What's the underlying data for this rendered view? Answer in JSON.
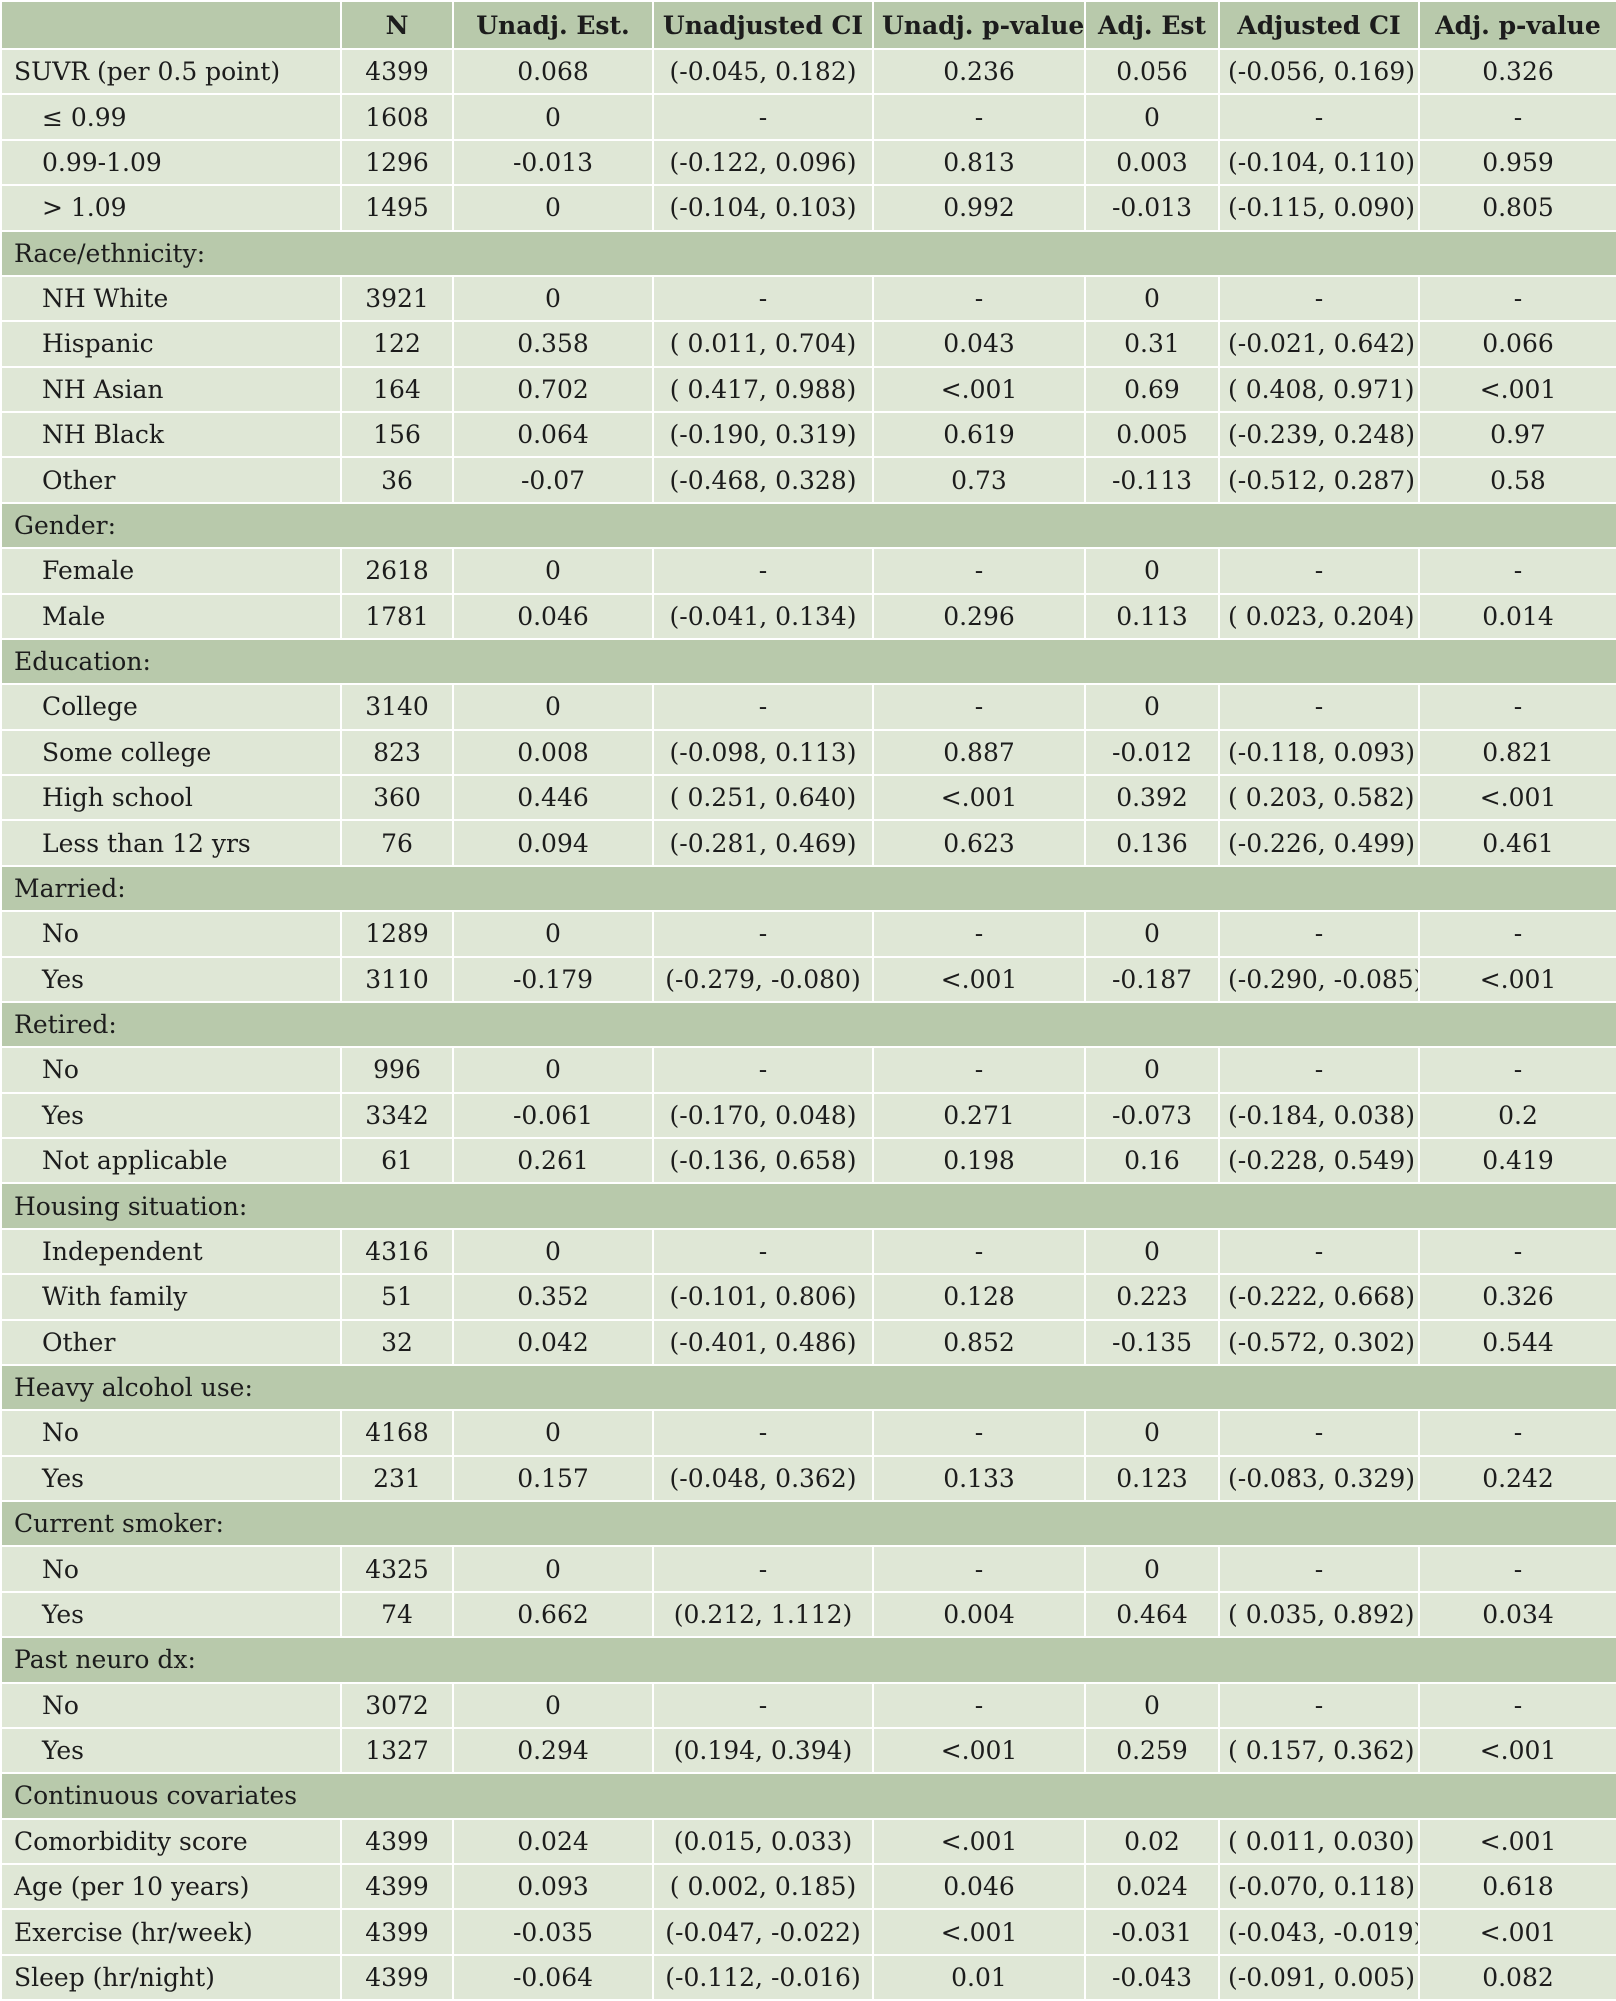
{
  "header": [
    "",
    "N",
    "Unadj. Est.",
    "Unadjusted CI",
    "Unadj. p-value",
    "Adj. Est",
    "Adjusted CI",
    "Adj. p-value"
  ],
  "rows": [
    {
      "kind": "data",
      "indent": false,
      "cells": [
        "SUVR (per 0.5 point)",
        "4399",
        "0.068",
        "(-0.045, 0.182)",
        "0.236",
        "0.056",
        "(-0.056,  0.169)",
        "0.326"
      ]
    },
    {
      "kind": "data",
      "indent": true,
      "cells": [
        "≤ 0.99",
        "1608",
        "0",
        "-",
        "-",
        "0",
        "-",
        "-"
      ]
    },
    {
      "kind": "data",
      "indent": true,
      "cells": [
        "0.99-1.09",
        "1296",
        "-0.013",
        "(-0.122, 0.096)",
        "0.813",
        "0.003",
        "(-0.104,  0.110)",
        "0.959"
      ]
    },
    {
      "kind": "data",
      "indent": true,
      "cells": [
        "> 1.09",
        "1495",
        "0",
        "(-0.104, 0.103)",
        "0.992",
        "-0.013",
        "(-0.115,  0.090)",
        "0.805"
      ]
    },
    {
      "kind": "section",
      "label": "Race/ethnicity:"
    },
    {
      "kind": "data",
      "indent": true,
      "cells": [
        "NH White",
        "3921",
        "0",
        "-",
        "-",
        "0",
        "-",
        "-"
      ]
    },
    {
      "kind": "data",
      "indent": true,
      "cells": [
        "Hispanic",
        "122",
        "0.358",
        "( 0.011, 0.704)",
        "0.043",
        "0.31",
        "(-0.021,  0.642)",
        "0.066"
      ]
    },
    {
      "kind": "data",
      "indent": true,
      "cells": [
        "NH Asian",
        "164",
        "0.702",
        "( 0.417, 0.988)",
        "<.001",
        "0.69",
        "( 0.408,  0.971)",
        "<.001"
      ]
    },
    {
      "kind": "data",
      "indent": true,
      "cells": [
        "NH Black",
        "156",
        "0.064",
        "(-0.190, 0.319)",
        "0.619",
        "0.005",
        "(-0.239,  0.248)",
        "0.97"
      ]
    },
    {
      "kind": "data",
      "indent": true,
      "cells": [
        "Other",
        "36",
        "-0.07",
        "(-0.468, 0.328)",
        "0.73",
        "-0.113",
        "(-0.512,  0.287)",
        "0.58"
      ]
    },
    {
      "kind": "section",
      "label": "Gender:"
    },
    {
      "kind": "data",
      "indent": true,
      "cells": [
        "Female",
        "2618",
        "0",
        "-",
        "-",
        "0",
        "-",
        "-"
      ]
    },
    {
      "kind": "data",
      "indent": true,
      "cells": [
        "Male",
        "1781",
        "0.046",
        "(-0.041, 0.134)",
        "0.296",
        "0.113",
        "( 0.023,  0.204)",
        "0.014"
      ]
    },
    {
      "kind": "section",
      "label": "Education:"
    },
    {
      "kind": "data",
      "indent": true,
      "cells": [
        "College",
        "3140",
        "0",
        "-",
        "-",
        "0",
        "-",
        "-"
      ]
    },
    {
      "kind": "data",
      "indent": true,
      "cells": [
        "Some college",
        "823",
        "0.008",
        "(-0.098, 0.113)",
        "0.887",
        "-0.012",
        "(-0.118,  0.093)",
        "0.821"
      ]
    },
    {
      "kind": "data",
      "indent": true,
      "cells": [
        "High school",
        "360",
        "0.446",
        "( 0.251, 0.640)",
        "<.001",
        "0.392",
        "( 0.203,  0.582)",
        "<.001"
      ]
    },
    {
      "kind": "data",
      "indent": true,
      "cells": [
        "Less than 12 yrs",
        "76",
        "0.094",
        "(-0.281, 0.469)",
        "0.623",
        "0.136",
        "(-0.226,  0.499)",
        "0.461"
      ]
    },
    {
      "kind": "section",
      "label": "Married:"
    },
    {
      "kind": "data",
      "indent": true,
      "cells": [
        "No",
        "1289",
        "0",
        "-",
        "-",
        "0",
        "-",
        "-"
      ]
    },
    {
      "kind": "data",
      "indent": true,
      "cells": [
        "Yes",
        "3110",
        "-0.179",
        "(-0.279, -0.080)",
        "<.001",
        "-0.187",
        "(-0.290, -0.085)",
        "<.001"
      ]
    },
    {
      "kind": "section",
      "label": "Retired:"
    },
    {
      "kind": "data",
      "indent": true,
      "cells": [
        "No",
        "996",
        "0",
        "-",
        "-",
        "0",
        "-",
        "-"
      ]
    },
    {
      "kind": "data",
      "indent": true,
      "cells": [
        "Yes",
        "3342",
        "-0.061",
        "(-0.170, 0.048)",
        "0.271",
        "-0.073",
        "(-0.184,  0.038)",
        "0.2"
      ]
    },
    {
      "kind": "data",
      "indent": true,
      "cells": [
        "Not applicable",
        "61",
        "0.261",
        "(-0.136, 0.658)",
        "0.198",
        "0.16",
        "(-0.228,  0.549)",
        "0.419"
      ]
    },
    {
      "kind": "section",
      "label": "Housing situation:"
    },
    {
      "kind": "data",
      "indent": true,
      "cells": [
        "Independent",
        "4316",
        "0",
        "-",
        "-",
        "0",
        "-",
        "-"
      ]
    },
    {
      "kind": "data",
      "indent": true,
      "cells": [
        "With family",
        "51",
        "0.352",
        "(-0.101, 0.806)",
        "0.128",
        "0.223",
        "(-0.222,  0.668)",
        "0.326"
      ]
    },
    {
      "kind": "data",
      "indent": true,
      "cells": [
        "Other",
        "32",
        "0.042",
        "(-0.401, 0.486)",
        "0.852",
        "-0.135",
        "(-0.572,  0.302)",
        "0.544"
      ]
    },
    {
      "kind": "section",
      "label": "Heavy alcohol use:"
    },
    {
      "kind": "data",
      "indent": true,
      "cells": [
        "No",
        "4168",
        "0",
        "-",
        "-",
        "0",
        "-",
        "-"
      ]
    },
    {
      "kind": "data",
      "indent": true,
      "cells": [
        "Yes",
        "231",
        "0.157",
        "(-0.048, 0.362)",
        "0.133",
        "0.123",
        "(-0.083,  0.329)",
        "0.242"
      ]
    },
    {
      "kind": "section",
      "label": "Current smoker:"
    },
    {
      "kind": "data",
      "indent": true,
      "cells": [
        "No",
        "4325",
        "0",
        "-",
        "-",
        "0",
        "-",
        "-"
      ]
    },
    {
      "kind": "data",
      "indent": true,
      "cells": [
        "Yes",
        "74",
        "0.662",
        "(0.212, 1.112)",
        "0.004",
        "0.464",
        "( 0.035,  0.892)",
        "0.034"
      ]
    },
    {
      "kind": "section",
      "label": "Past neuro dx:"
    },
    {
      "kind": "data",
      "indent": true,
      "cells": [
        "No",
        "3072",
        "0",
        "-",
        "-",
        "0",
        "-",
        "-"
      ]
    },
    {
      "kind": "data",
      "indent": true,
      "cells": [
        "Yes",
        "1327",
        "0.294",
        "(0.194, 0.394)",
        "<.001",
        "0.259",
        "( 0.157,  0.362)",
        "<.001"
      ]
    },
    {
      "kind": "section",
      "label": "Continuous covariates"
    },
    {
      "kind": "data",
      "indent": false,
      "cells": [
        "Comorbidity score",
        "4399",
        "0.024",
        "(0.015, 0.033)",
        "<.001",
        "0.02",
        "( 0.011,  0.030)",
        "<.001"
      ]
    },
    {
      "kind": "data",
      "indent": false,
      "cells": [
        "Age (per 10 years)",
        "4399",
        "0.093",
        "( 0.002, 0.185)",
        "0.046",
        "0.024",
        "(-0.070,  0.118)",
        "0.618"
      ]
    },
    {
      "kind": "data",
      "indent": false,
      "cells": [
        "Exercise (hr/week)",
        "4399",
        "-0.035",
        "(-0.047, -0.022)",
        "<.001",
        "-0.031",
        "(-0.043, -0.019)",
        "<.001"
      ]
    },
    {
      "kind": "data",
      "indent": false,
      "cells": [
        "Sleep (hr/night)",
        "4399",
        "-0.064",
        "(-0.112, -0.016)",
        "0.01",
        "-0.043",
        "(-0.091,  0.005)",
        "0.082"
      ]
    }
  ],
  "colors": {
    "header_bg": "#b8c9ab",
    "row_bg": "#dfe7d6",
    "text": "#1c1c1c"
  }
}
